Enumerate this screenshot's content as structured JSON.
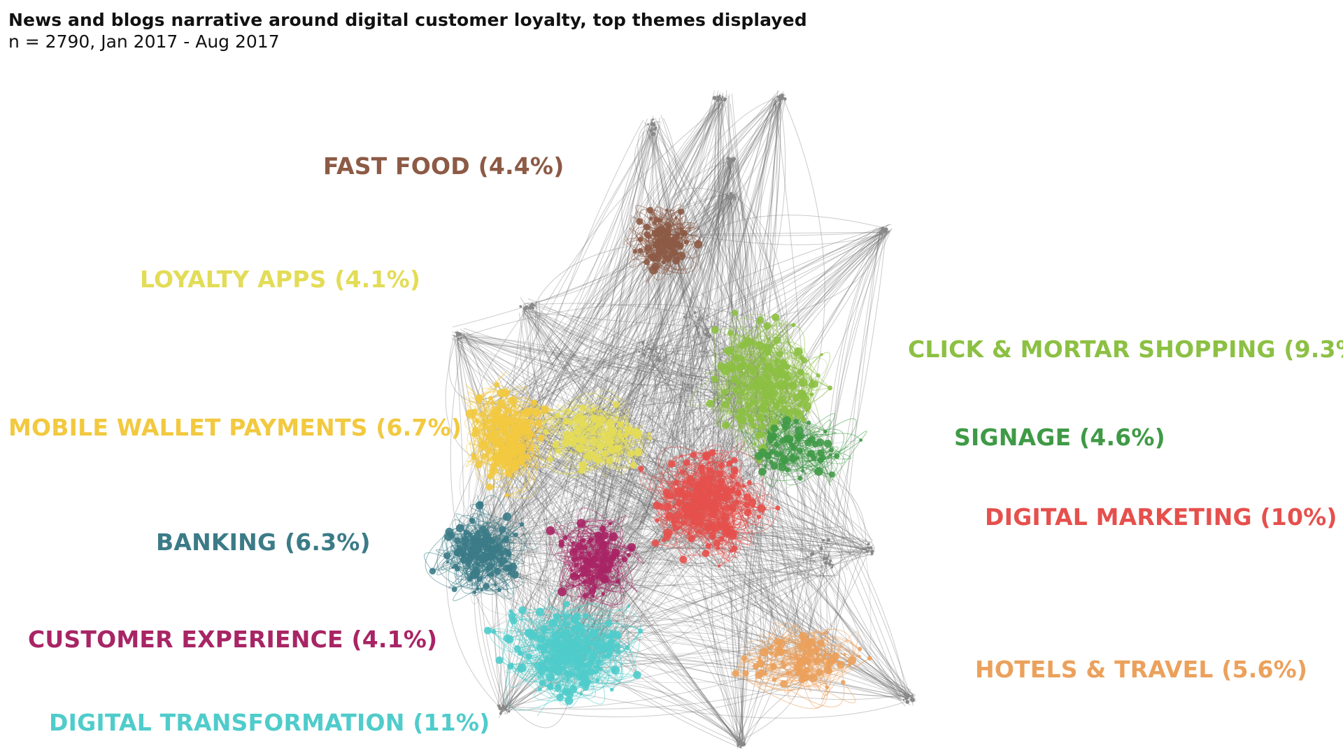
{
  "title": "News and blogs narrative around digital customer loyalty, top themes displayed",
  "subtitle": "n = 2790, Jan 2017 - Aug 2017",
  "themes": [
    {
      "key": "fast_food",
      "label": "FAST FOOD (4.4%)",
      "color": "#8c5a45"
    },
    {
      "key": "loyalty_apps",
      "label": "LOYALTY APPS (4.1%)",
      "color": "#e3dc57"
    },
    {
      "key": "click_mortar",
      "label": "CLICK & MORTAR SHOPPING (9.3%)",
      "color": "#8cc043"
    },
    {
      "key": "mobile_wallet",
      "label": "MOBILE WALLET PAYMENTS (6.7%)",
      "color": "#f2c93f"
    },
    {
      "key": "signage",
      "label": "SIGNAGE (4.6%)",
      "color": "#3f9a46"
    },
    {
      "key": "digital_marketing",
      "label": "DIGITAL MARKETING (10%)",
      "color": "#e5504d"
    },
    {
      "key": "banking",
      "label": "BANKING (6.3%)",
      "color": "#3b7b87"
    },
    {
      "key": "customer_experience",
      "label": "CUSTOMER EXPERIENCE (4.1%)",
      "color": "#a82565"
    },
    {
      "key": "hotels_travel",
      "label": "HOTELS & TRAVEL (5.6%)",
      "color": "#eba15c"
    },
    {
      "key": "digital_transformation",
      "label": "DIGITAL TRANSFORMATION (11%)",
      "color": "#4fcccb"
    }
  ],
  "edge_color": "#6b6b6b"
}
